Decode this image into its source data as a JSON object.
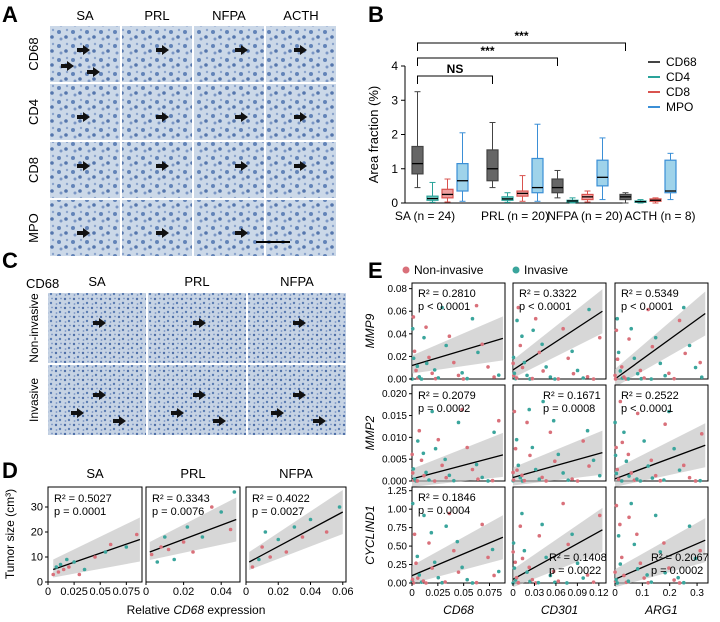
{
  "figure": {
    "panel_letters": [
      "A",
      "B",
      "C",
      "D",
      "E"
    ]
  },
  "panelA": {
    "columns": [
      "SA",
      "PRL",
      "NFPA",
      "ACTH"
    ],
    "rows": [
      "CD68",
      "CD4",
      "CD8",
      "MPO"
    ],
    "bg_color": "#c9d6e6",
    "nuclei_color": "#5a7cb0",
    "stain_color": "#9a6a3a"
  },
  "panelB": {
    "chart_data": {
      "type": "box",
      "ylabel": "Area fraction (%)",
      "ylim": [
        0,
        4
      ],
      "yticks": [
        "0",
        "1",
        "2",
        "3",
        "4"
      ],
      "groups": [
        "SA (n = 24)",
        "PRL (n = 20)",
        "NFPA (n = 20)",
        "ACTH (n = 8)"
      ],
      "series": [
        {
          "name": "CD68",
          "color": "#444444",
          "fill": "#666666"
        },
        {
          "name": "CD4",
          "color": "#2aa39a",
          "fill": "#7fd3cc"
        },
        {
          "name": "CD8",
          "color": "#d9534f",
          "fill": "#f0a0a0"
        },
        {
          "name": "MPO",
          "color": "#3b8fd6",
          "fill": "#9fd3ea"
        }
      ],
      "boxes": [
        [
          [
            0.45,
            0.85,
            1.15,
            1.65,
            3.25
          ],
          [
            0.02,
            0.08,
            0.13,
            0.2,
            0.6
          ],
          [
            0.03,
            0.15,
            0.25,
            0.4,
            0.7
          ],
          [
            0.05,
            0.35,
            0.65,
            1.15,
            2.05
          ]
        ],
        [
          [
            0.45,
            0.65,
            1.0,
            1.55,
            2.35
          ],
          [
            0.02,
            0.08,
            0.12,
            0.18,
            0.3
          ],
          [
            0.05,
            0.2,
            0.28,
            0.35,
            0.8
          ],
          [
            0.05,
            0.3,
            0.45,
            1.3,
            2.3
          ]
        ],
        [
          [
            0.15,
            0.3,
            0.45,
            0.7,
            0.95
          ],
          [
            0.0,
            0.03,
            0.06,
            0.08,
            0.15
          ],
          [
            0.03,
            0.1,
            0.18,
            0.25,
            0.35
          ],
          [
            0.1,
            0.5,
            0.75,
            1.25,
            1.9
          ]
        ],
        [
          [
            0.0,
            0.1,
            0.18,
            0.25,
            0.3
          ],
          [
            0.0,
            0.02,
            0.04,
            0.06,
            0.1
          ],
          [
            0.0,
            0.05,
            0.08,
            0.12,
            0.15
          ],
          [
            0.1,
            0.3,
            0.35,
            1.25,
            1.45
          ]
        ]
      ],
      "annotations": [
        {
          "label": "***",
          "from_group": 0,
          "to_group": 3
        },
        {
          "label": "***",
          "from_group": 0,
          "to_group": 2
        },
        {
          "label": "NS",
          "from_group": 0,
          "to_group": 1
        }
      ]
    }
  },
  "panelC": {
    "title": "CD68",
    "columns": [
      "SA",
      "PRL",
      "NFPA"
    ],
    "rows": [
      "Non-invasive",
      "Invasive"
    ]
  },
  "panelD": {
    "ylabel": "Tumor size (cm³)",
    "xlabel_prefix": "Relative ",
    "xlabel_gene": "CD68",
    "xlabel_suffix": " expression",
    "chart_data": [
      {
        "type": "scatter",
        "title": "SA",
        "r2": "R² = 0.5027",
        "p": "p = 0.0001",
        "xlim": [
          0,
          0.09
        ],
        "ylim": [
          0,
          38
        ],
        "xticks": [
          0,
          0.025,
          0.05,
          0.075
        ],
        "xtick_labels": [
          "0",
          "0.025",
          "0.05",
          "0.075"
        ],
        "yticks": [
          0,
          10,
          20,
          30
        ],
        "ytick_labels": [
          "0",
          "10",
          "20",
          "30"
        ],
        "fit": {
          "x0": 0.005,
          "y0": 5,
          "x1": 0.088,
          "y1": 17
        },
        "points": [
          [
            0.005,
            3
          ],
          [
            0.008,
            6
          ],
          [
            0.01,
            4
          ],
          [
            0.012,
            7
          ],
          [
            0.015,
            5
          ],
          [
            0.018,
            9
          ],
          [
            0.02,
            6
          ],
          [
            0.025,
            8
          ],
          [
            0.03,
            3
          ],
          [
            0.035,
            5
          ],
          [
            0.045,
            10
          ],
          [
            0.055,
            12
          ],
          [
            0.06,
            15
          ],
          [
            0.075,
            14
          ],
          [
            0.085,
            19
          ]
        ]
      },
      {
        "type": "scatter",
        "title": "PRL",
        "r2": "R² = 0.3343",
        "p": "p = 0.0076",
        "xlim": [
          0,
          0.05
        ],
        "ylim": [
          0,
          38
        ],
        "xticks": [
          0,
          0.02,
          0.04
        ],
        "xtick_labels": [
          "0",
          "0.02",
          "0.04"
        ],
        "yticks": [
          0,
          10,
          20,
          30
        ],
        "ytick_labels": [
          "0",
          "10",
          "20",
          "30"
        ],
        "fit": {
          "x0": 0.002,
          "y0": 12,
          "x1": 0.048,
          "y1": 25
        },
        "points": [
          [
            0.003,
            11
          ],
          [
            0.006,
            8
          ],
          [
            0.008,
            14
          ],
          [
            0.01,
            18
          ],
          [
            0.012,
            13
          ],
          [
            0.015,
            9
          ],
          [
            0.02,
            16
          ],
          [
            0.022,
            22
          ],
          [
            0.025,
            12
          ],
          [
            0.03,
            18
          ],
          [
            0.035,
            30
          ],
          [
            0.04,
            28
          ],
          [
            0.045,
            21
          ],
          [
            0.047,
            36
          ]
        ]
      },
      {
        "type": "scatter",
        "title": "NFPA",
        "r2": "R² = 0.4022",
        "p": "p = 0.0027",
        "xlim": [
          0,
          0.062
        ],
        "ylim": [
          0,
          38
        ],
        "xticks": [
          0,
          0.02,
          0.04,
          0.06
        ],
        "xtick_labels": [
          "0",
          "0.02",
          "0.04",
          "0.06"
        ],
        "yticks": [
          0,
          10,
          20,
          30
        ],
        "ytick_labels": [
          "0",
          "10",
          "20",
          "30"
        ],
        "fit": {
          "x0": 0.002,
          "y0": 8,
          "x1": 0.06,
          "y1": 28
        },
        "points": [
          [
            0.004,
            6
          ],
          [
            0.008,
            9
          ],
          [
            0.01,
            14
          ],
          [
            0.012,
            20
          ],
          [
            0.015,
            10
          ],
          [
            0.02,
            17
          ],
          [
            0.025,
            12
          ],
          [
            0.03,
            22
          ],
          [
            0.035,
            18
          ],
          [
            0.04,
            25
          ],
          [
            0.05,
            20
          ],
          [
            0.058,
            30
          ]
        ]
      }
    ]
  },
  "panelE": {
    "legend": [
      {
        "label": "Non-invasive",
        "color": "#d9707a"
      },
      {
        "label": "Invasive",
        "color": "#3aa59c"
      }
    ],
    "rows": [
      "MMP9",
      "MMP2",
      "CYCLIND1"
    ],
    "columns": [
      "CD68",
      "CD301",
      "ARG1"
    ],
    "row_scales": [
      {
        "ylim": [
          0,
          0.085
        ],
        "yticks": [
          0,
          0.02,
          0.04,
          0.06,
          0.08
        ],
        "ytick_labels": [
          "0.00",
          "0.02",
          "0.04",
          "0.06",
          "0.08"
        ]
      },
      {
        "ylim": [
          0,
          0.022
        ],
        "yticks": [
          0,
          0.005,
          0.01,
          0.015,
          0.02
        ],
        "ytick_labels": [
          "0.000",
          "0.005",
          "0.010",
          "0.015",
          "0.020"
        ]
      },
      {
        "ylim": [
          0,
          1.3
        ],
        "yticks": [
          0,
          0.25,
          0.5,
          0.75,
          1.0,
          1.25
        ],
        "ytick_labels": [
          "0.00",
          "0.25",
          "0.50",
          "0.75",
          "1.00",
          "1.25"
        ]
      }
    ],
    "col_scales": [
      {
        "xlim": [
          0,
          0.09
        ],
        "xticks": [
          0,
          0.025,
          0.05,
          0.075
        ],
        "xtick_labels": [
          "0",
          "0.025",
          "0.05",
          "0.075"
        ]
      },
      {
        "xlim": [
          0,
          0.13
        ],
        "xticks": [
          0,
          0.03,
          0.06,
          0.09,
          0.12
        ],
        "xtick_labels": [
          "0",
          "0.03",
          "0.06",
          "0.09",
          "0.12"
        ]
      },
      {
        "xlim": [
          0,
          0.34
        ],
        "xticks": [
          0,
          0.1,
          0.2,
          0.3
        ],
        "xtick_labels": [
          "0",
          "0.1",
          "0.2",
          "0.3"
        ]
      }
    ],
    "stats": [
      [
        {
          "r2": "R² = 0.2810",
          "p": "p < 0.0001"
        },
        {
          "r2": "R² = 0.3322",
          "p": "p < 0.0001"
        },
        {
          "r2": "R² = 0.5349",
          "p": "p < 0.0001"
        }
      ],
      [
        {
          "r2": "R² = 0.2079",
          "p": "p = 0.0002"
        },
        {
          "r2": "R² = 0.1671",
          "p": "p = 0.0008"
        },
        {
          "r2": "R² = 0.2522",
          "p": "p < 0.0001"
        }
      ],
      [
        {
          "r2": "R² = 0.1846",
          "p": "p = 0.0004"
        },
        {
          "r2": "R² = 0.1408",
          "p": "p = 0.0022"
        },
        {
          "r2": "R² = 0.2067",
          "p": "p = 0.0002"
        }
      ]
    ],
    "stat_positions": [
      [
        "top",
        "top",
        "top"
      ],
      [
        "top",
        "top-right",
        "top"
      ],
      [
        "top",
        "bottom-right",
        "bottom-right"
      ]
    ],
    "fits": [
      [
        [
          0.0,
          0.012,
          0.088,
          0.036
        ],
        [
          0.0,
          0.008,
          0.125,
          0.06
        ],
        [
          0.0,
          0.0,
          0.33,
          0.058
        ]
      ],
      [
        [
          0.0,
          0.0005,
          0.088,
          0.006
        ],
        [
          0.0,
          0.0008,
          0.125,
          0.0065
        ],
        [
          0.0,
          0.0005,
          0.33,
          0.0082
        ]
      ],
      [
        [
          0.0,
          0.1,
          0.088,
          0.62
        ],
        [
          0.0,
          0.05,
          0.125,
          0.72
        ],
        [
          0.0,
          0.05,
          0.33,
          0.58
        ]
      ]
    ]
  }
}
